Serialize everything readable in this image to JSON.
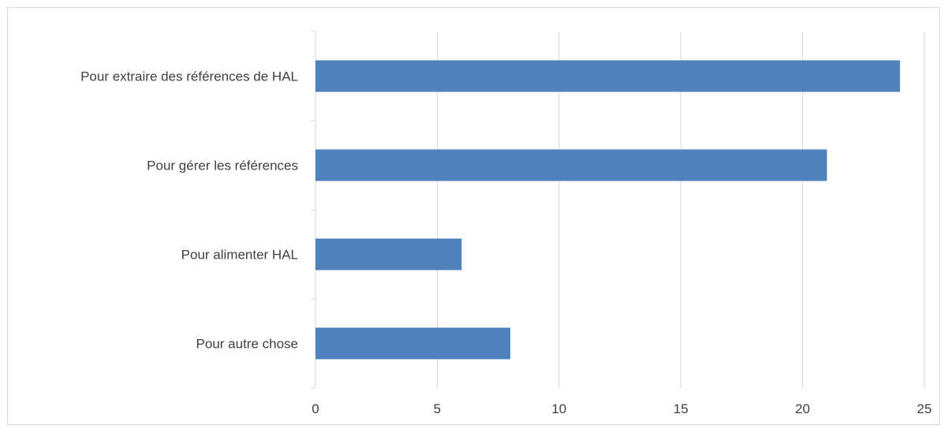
{
  "chart_data": {
    "type": "bar",
    "orientation": "horizontal",
    "categories": [
      "Pour extraire des références de HAL",
      "Pour gérer les références",
      "Pour alimenter HAL",
      "Pour autre chose"
    ],
    "values": [
      24,
      21,
      6,
      8
    ],
    "xlim": [
      0,
      25
    ],
    "xticks": [
      "0",
      "5",
      "10",
      "15",
      "20",
      "25"
    ],
    "grid": "vertical",
    "colors": {
      "bar": "#4f81bd",
      "grid": "#d9d9d9",
      "text": "#404040"
    }
  }
}
